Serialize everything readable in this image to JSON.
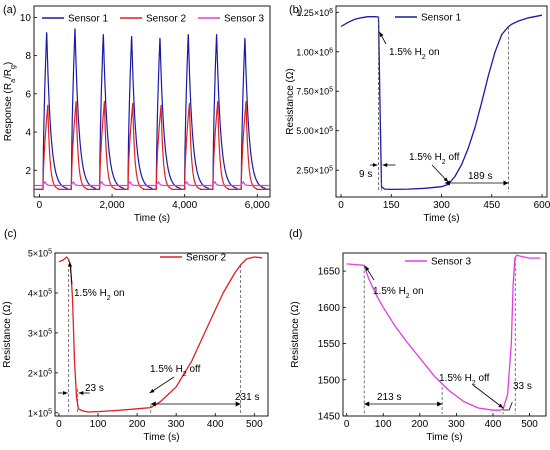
{
  "chart_data": [
    {
      "panel": "(a)",
      "type": "line",
      "xlabel": "Time (s)",
      "ylabel": "Response (R",
      "ylabel_sub": "a",
      "ylabel_mid": "/R",
      "ylabel_sub2": "g",
      "ylabel_end": ")",
      "xlim": [
        -150,
        6350
      ],
      "ylim": [
        0.6,
        10.6
      ],
      "xticks": [
        0,
        2000,
        4000,
        6000
      ],
      "xtick_labels": [
        "0",
        "2,000",
        "4,000",
        "6,000"
      ],
      "yticks": [
        2,
        4,
        6,
        8,
        10
      ],
      "ytick_labels": [
        "2",
        "4",
        "6",
        "8",
        "10"
      ],
      "legend_position": "top",
      "pulse_start": 100,
      "pulse_period": 780,
      "pulse_count": 8,
      "series": [
        {
          "name": "Sensor 1",
          "color": "#1a1aa8",
          "peaks": [
            9.3,
            9.5,
            9.2,
            9.1,
            9.0,
            9.2,
            9.2,
            9.0
          ],
          "base": 1.0,
          "rise": 100,
          "decay": 560
        },
        {
          "name": "Sensor 2",
          "color": "#e01f1f",
          "peaks": [
            5.4,
            5.6,
            5.6,
            5.5,
            5.4,
            5.5,
            5.6,
            5.6
          ],
          "base": 1.0,
          "rise": 130,
          "decay": 300
        },
        {
          "name": "Sensor 3",
          "color": "#e23be2",
          "peaks": [
            1.4,
            1.4,
            1.4,
            1.4,
            1.4,
            1.4,
            1.4,
            1.4
          ],
          "base": 1.2,
          "rise": 60,
          "decay": 180
        }
      ]
    },
    {
      "panel": "(b)",
      "type": "line",
      "xlabel": "Time (s)",
      "ylabel": "Resistance (Ω)",
      "xlim": [
        -15,
        615
      ],
      "ylim": [
        80000,
        1290000
      ],
      "xticks": [
        0,
        150,
        300,
        450,
        600
      ],
      "xtick_labels": [
        "0",
        "150",
        "300",
        "450",
        "600"
      ],
      "yticks": [
        250000,
        500000,
        750000,
        1000000,
        1250000
      ],
      "ytick_labels": [
        {
          "m": "2.50×10",
          "e": "5"
        },
        {
          "m": "5.00×10",
          "e": "5"
        },
        {
          "m": "7.50×10",
          "e": "5"
        },
        {
          "m": "1.00×10",
          "e": "6"
        },
        {
          "m": "1.25×10",
          "e": "6"
        }
      ],
      "series": [
        {
          "name": "Sensor 1",
          "color": "#1a1aa8",
          "x": [
            0,
            20,
            40,
            60,
            80,
            100,
            112,
            116,
            121,
            130,
            150,
            200,
            250,
            300,
            320,
            340,
            360,
            380,
            400,
            420,
            440,
            460,
            480,
            500,
            510,
            530,
            560,
            600
          ],
          "y": [
            1160000,
            1185000,
            1205000,
            1215000,
            1222000,
            1222000,
            1220000,
            700000,
            145000,
            130000,
            128000,
            130000,
            135000,
            145000,
            160000,
            210000,
            285000,
            390000,
            520000,
            680000,
            850000,
            1000000,
            1110000,
            1160000,
            1175000,
            1195000,
            1215000,
            1232000
          ]
        }
      ],
      "annotations": {
        "on_label": "1.5% H",
        "on_sub": "2",
        "on_end": " on",
        "off_label": "1.5% H",
        "off_sub": "2",
        "off_end": " off",
        "response_time": "9 s",
        "recovery_time": "189 s"
      }
    },
    {
      "panel": "(c)",
      "type": "line",
      "xlabel": "Time (s)",
      "ylabel": "Resistance (Ω)",
      "xlim": [
        -10,
        535
      ],
      "ylim": [
        92000,
        500000
      ],
      "xticks": [
        0,
        100,
        200,
        300,
        400,
        500
      ],
      "xtick_labels": [
        "0",
        "100",
        "200",
        "300",
        "400",
        "500"
      ],
      "yticks": [
        100000,
        200000,
        300000,
        400000,
        500000
      ],
      "ytick_labels": [
        {
          "m": "1×10",
          "e": "5"
        },
        {
          "m": "2×10",
          "e": "5"
        },
        {
          "m": "3×10",
          "e": "5"
        },
        {
          "m": "4×10",
          "e": "5"
        },
        {
          "m": "5×10",
          "e": "5"
        }
      ],
      "series": [
        {
          "name": "Sensor 2",
          "color": "#e01f1f",
          "x": [
            0,
            10,
            20,
            25,
            30,
            35,
            40,
            45,
            50,
            60,
            75,
            100,
            150,
            200,
            235,
            260,
            300,
            340,
            380,
            420,
            450,
            465,
            480,
            500,
            520
          ],
          "y": [
            478000,
            482000,
            490000,
            483000,
            470000,
            380000,
            230000,
            140000,
            110000,
            105000,
            102000,
            103000,
            106000,
            110000,
            113000,
            128000,
            165000,
            230000,
            315000,
            400000,
            450000,
            470000,
            485000,
            490000,
            488000
          ]
        }
      ],
      "annotations": {
        "on_label": "1.5% H",
        "on_sub": "2",
        "on_end": " on",
        "off_label": "1.5% H",
        "off_sub": "2",
        "off_end": " off",
        "response_time": "23 s",
        "recovery_time": "231 s"
      }
    },
    {
      "panel": "(d)",
      "type": "line",
      "xlabel": "Time (s)",
      "ylabel": "Resistance (Ω)",
      "xlim": [
        -10,
        545
      ],
      "ylim": [
        1450,
        1675
      ],
      "xticks": [
        0,
        100,
        200,
        300,
        400,
        500
      ],
      "xtick_labels": [
        "0",
        "100",
        "200",
        "300",
        "400",
        "500"
      ],
      "yticks": [
        1450,
        1500,
        1550,
        1600,
        1650
      ],
      "ytick_labels": [
        "1450",
        "1500",
        "1550",
        "1600",
        "1650"
      ],
      "series": [
        {
          "name": "Sensor 3",
          "color": "#e23be2",
          "x": [
            0,
            25,
            48,
            60,
            80,
            100,
            130,
            160,
            200,
            240,
            280,
            320,
            360,
            400,
            420,
            428,
            440,
            450,
            455,
            460,
            465,
            480,
            500,
            530
          ],
          "y": [
            1660,
            1659,
            1658,
            1640,
            1618,
            1600,
            1576,
            1555,
            1530,
            1505,
            1485,
            1470,
            1461,
            1458,
            1458,
            1460,
            1480,
            1550,
            1630,
            1668,
            1672,
            1670,
            1668,
            1668
          ]
        }
      ],
      "annotations": {
        "on_label": "1.5% H",
        "on_sub": "2",
        "on_end": " on",
        "off_label": "1.5% H",
        "off_sub": "2",
        "off_end": " off",
        "response_time": "213 s",
        "recovery_time": "33 s"
      }
    }
  ]
}
